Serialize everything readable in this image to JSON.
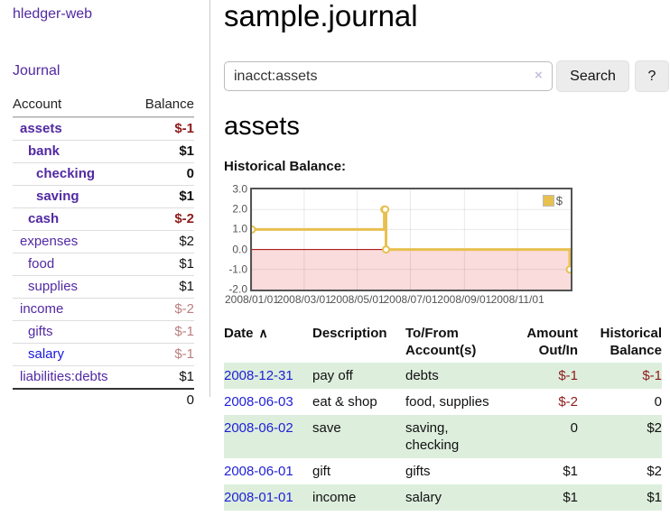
{
  "sidebar": {
    "brand": "hledger-web",
    "nav": {
      "journal": "Journal"
    },
    "accounts_table": {
      "headers": {
        "account": "Account",
        "balance": "Balance"
      },
      "rows": [
        {
          "name": "assets",
          "level": 1,
          "bold": true,
          "balance": "$-1",
          "balance_tone": "negative",
          "link_tone": "purple"
        },
        {
          "name": "bank",
          "level": 2,
          "bold": true,
          "balance": "$1",
          "balance_tone": "normal",
          "link_tone": "purple"
        },
        {
          "name": "checking",
          "level": 3,
          "bold": true,
          "balance": "0",
          "balance_tone": "normal",
          "link_tone": "purple"
        },
        {
          "name": "saving",
          "level": 3,
          "bold": true,
          "balance": "$1",
          "balance_tone": "normal",
          "link_tone": "purple"
        },
        {
          "name": "cash",
          "level": 2,
          "bold": true,
          "balance": "$-2",
          "balance_tone": "negative",
          "link_tone": "purple"
        },
        {
          "name": "expenses",
          "level": 1,
          "bold": false,
          "balance": "$2",
          "balance_tone": "normal",
          "link_tone": "purple"
        },
        {
          "name": "food",
          "level": 2,
          "bold": false,
          "balance": "$1",
          "balance_tone": "normal",
          "link_tone": "purple"
        },
        {
          "name": "supplies",
          "level": 2,
          "bold": false,
          "balance": "$1",
          "balance_tone": "normal",
          "link_tone": "purple"
        },
        {
          "name": "income",
          "level": 1,
          "bold": false,
          "balance": "$-2",
          "balance_tone": "negative-dim",
          "link_tone": "purple"
        },
        {
          "name": "gifts",
          "level": 2,
          "bold": false,
          "balance": "$-1",
          "balance_tone": "negative-dim",
          "link_tone": "purple"
        },
        {
          "name": "salary",
          "level": 2,
          "bold": false,
          "balance": "$-1",
          "balance_tone": "negative-dim",
          "link_tone": "blue"
        },
        {
          "name": "liabilities:debts",
          "level": 1,
          "bold": false,
          "balance": "$1",
          "balance_tone": "normal",
          "link_tone": "purple"
        }
      ],
      "total": "0"
    }
  },
  "header": {
    "title": "sample.journal"
  },
  "search": {
    "value": "inacct:assets",
    "clear_icon": "×",
    "button": "Search",
    "help_button": "?"
  },
  "account_page": {
    "heading": "assets",
    "chart_label": "Historical Balance:"
  },
  "chart_data": {
    "type": "line",
    "step": true,
    "title": "Historical Balance",
    "legend": "$",
    "legend_position": "top-right",
    "grid": true,
    "x_range": [
      "2008-01-01",
      "2009-01-01"
    ],
    "ylim": [
      -2,
      3
    ],
    "y_ticks": [
      "3.0",
      "2.0",
      "1.0",
      "0.0",
      "-1.0",
      "-2.0"
    ],
    "x_ticks": [
      "2008/01/01",
      "2008/03/01",
      "2008/05/01",
      "2008/07/01",
      "2008/09/01",
      "2008/11/01"
    ],
    "series": [
      {
        "name": "$",
        "color": "#e8c050",
        "points": [
          [
            "2008-01-01",
            1
          ],
          [
            "2008-06-01",
            2
          ],
          [
            "2008-06-02",
            2
          ],
          [
            "2008-06-03",
            0
          ],
          [
            "2008-12-31",
            -1
          ]
        ]
      }
    ],
    "negative_region_color": "#fbdcdc",
    "zero_line_color": "#9e0000"
  },
  "register": {
    "headers": [
      "Date",
      "Description",
      "To/From Account(s)",
      "Amount Out/In",
      "Historical Balance"
    ],
    "sort_icon": "∧",
    "rows": [
      {
        "date": "2008-12-31",
        "description": "pay off",
        "accounts": "debts",
        "amount": "$-1",
        "amount_tone": "negative",
        "balance": "$-1",
        "balance_tone": "negative"
      },
      {
        "date": "2008-06-03",
        "description": "eat & shop",
        "accounts": "food, supplies",
        "amount": "$-2",
        "amount_tone": "negative",
        "balance": "0",
        "balance_tone": "normal"
      },
      {
        "date": "2008-06-02",
        "description": "save",
        "accounts": "saving,\nchecking",
        "amount": "0",
        "amount_tone": "normal",
        "balance": "$2",
        "balance_tone": "normal"
      },
      {
        "date": "2008-06-01",
        "description": "gift",
        "accounts": "gifts",
        "amount": "$1",
        "amount_tone": "normal",
        "balance": "$2",
        "balance_tone": "normal"
      },
      {
        "date": "2008-01-01",
        "description": "income",
        "accounts": "salary",
        "amount": "$1",
        "amount_tone": "normal",
        "balance": "$1",
        "balance_tone": "normal"
      }
    ]
  }
}
